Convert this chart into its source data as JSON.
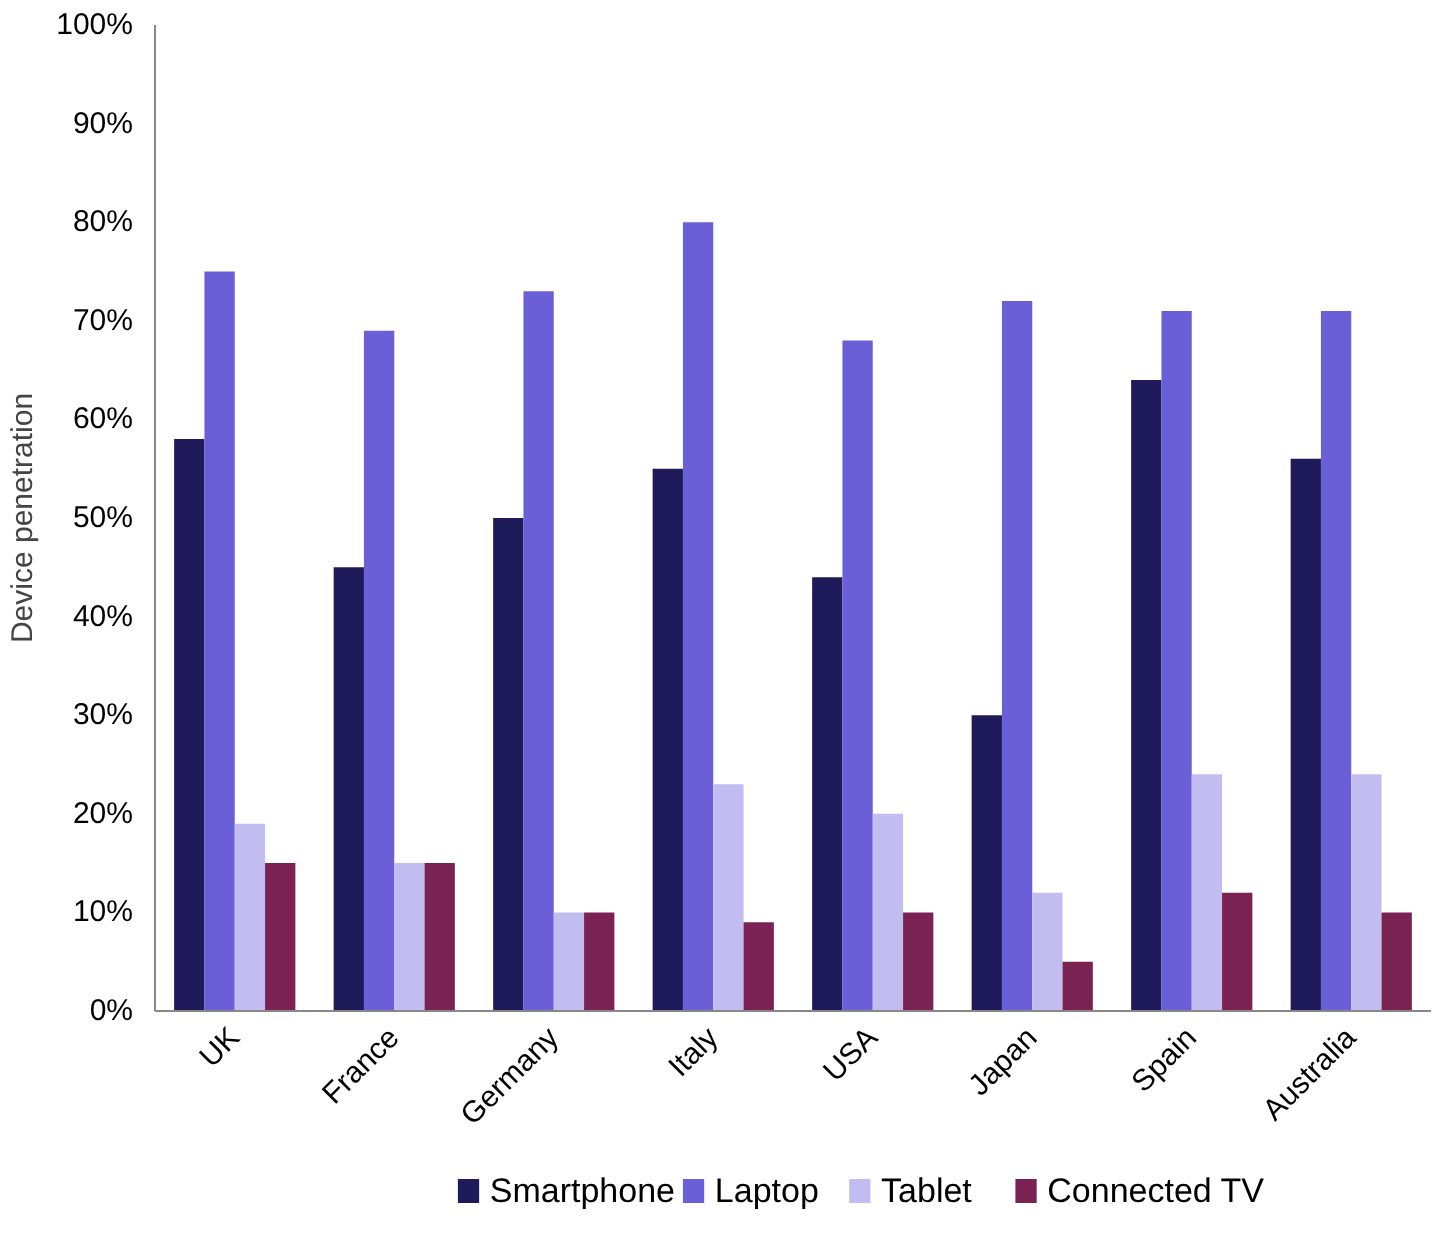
{
  "chart_data": {
    "type": "bar",
    "ylabel": "Device penetration",
    "categories": [
      "UK",
      "France",
      "Germany",
      "Italy",
      "USA",
      "Japan",
      "Spain",
      "Australia"
    ],
    "series": [
      {
        "name": "Smartphone",
        "color": "#1f1a5a",
        "values": [
          58,
          45,
          50,
          55,
          44,
          30,
          64,
          56
        ]
      },
      {
        "name": "Laptop",
        "color": "#6a5fd6",
        "values": [
          75,
          69,
          73,
          80,
          68,
          72,
          71,
          71
        ]
      },
      {
        "name": "Tablet",
        "color": "#c2bdf0",
        "values": [
          19,
          15,
          10,
          23,
          20,
          12,
          24,
          24
        ]
      },
      {
        "name": "Connected TV",
        "color": "#7a2352",
        "values": [
          15,
          15,
          10,
          9,
          10,
          5,
          12,
          10
        ]
      }
    ],
    "ylim": [
      0,
      100
    ],
    "yticks": [
      {
        "value": 0,
        "label": "0%"
      },
      {
        "value": 10,
        "label": "10%"
      },
      {
        "value": 20,
        "label": "20%"
      },
      {
        "value": 30,
        "label": "30%"
      },
      {
        "value": 40,
        "label": "40%"
      },
      {
        "value": 50,
        "label": "50%"
      },
      {
        "value": 60,
        "label": "60%"
      },
      {
        "value": 70,
        "label": "70%"
      },
      {
        "value": 80,
        "label": "80%"
      },
      {
        "value": 90,
        "label": "90%"
      },
      {
        "value": 100,
        "label": "100%"
      }
    ],
    "grid": false,
    "legend": "bottom"
  }
}
